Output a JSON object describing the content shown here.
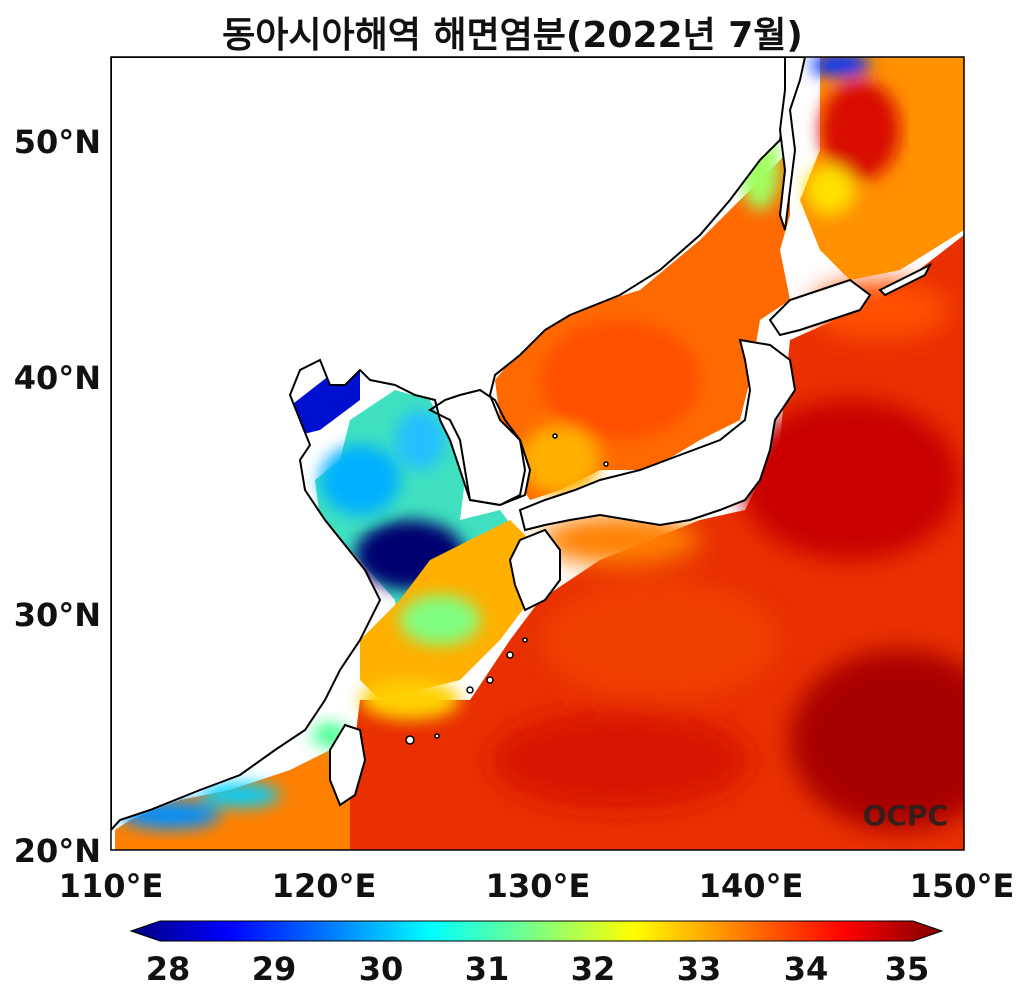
{
  "title": "동아시아해역 해면염분(2022년 7월)",
  "watermark": "OCPC",
  "lon_ticks": [
    "110°E",
    "120°E",
    "130°E",
    "140°E",
    "150°E"
  ],
  "lat_ticks": [
    "20°N",
    "30°N",
    "40°N",
    "50°N"
  ],
  "colorbar": {
    "ticks": [
      "28",
      "29",
      "30",
      "31",
      "32",
      "33",
      "34",
      "35"
    ],
    "min": 28,
    "max": 35,
    "colormap": "jet",
    "colors": [
      "#00007f",
      "#0000ff",
      "#007fff",
      "#00ffff",
      "#7fff7f",
      "#ffff00",
      "#ff7f00",
      "#ff0000",
      "#7f0000"
    ]
  },
  "map": {
    "extent_lon": [
      110,
      150
    ],
    "extent_lat": [
      20,
      53.5
    ],
    "land_color": "#ffffff",
    "coast_color": "#000000"
  }
}
